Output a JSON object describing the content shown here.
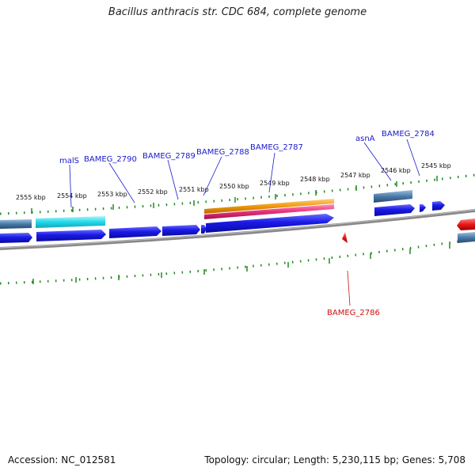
{
  "title": "Bacillus anthracis str. CDC 684, complete genome",
  "footer": {
    "accession": "Accession: NC_012581",
    "summary": "Topology: circular; Length: 5,230,115 bp; Genes: 5,708"
  },
  "scale_labels": [
    "2555 kbp",
    "2554 kbp",
    "2553 kbp",
    "2552 kbp",
    "2551 kbp",
    "2550 kbp",
    "2549 kbp",
    "2548 kbp",
    "2547 kbp",
    "2546 kbp",
    "2545 kbp"
  ],
  "gene_labels": [
    "malS",
    "BAMEG_2790",
    "BAMEG_2789",
    "BAMEG_2788",
    "BAMEG_2787",
    "asnA",
    "BAMEG_2784",
    "BAMEG_2786"
  ],
  "colors": {
    "forward_gene": "#1a1ae6",
    "rna_cyan": "#22d8e8",
    "steel": "#4a7aa8",
    "orange": "#f0980a",
    "pink": "#e8307a",
    "red": "#e81818",
    "tick": "#1f8a1f",
    "backbone": "#888888"
  }
}
